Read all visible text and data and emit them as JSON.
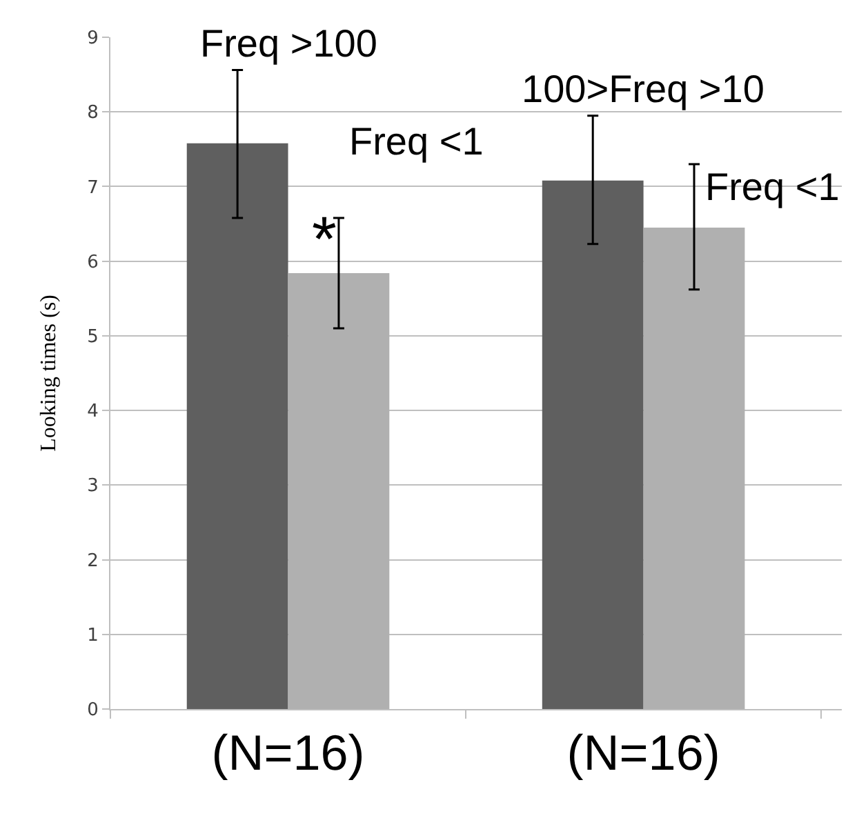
{
  "chart_data": {
    "type": "bar",
    "ylabel": "Looking times (s)",
    "categories": [
      "(N=16)",
      "(N=16)"
    ],
    "series": [
      {
        "color": "#5f5f5f",
        "values": [
          7.58,
          7.08
        ],
        "errors": [
          [
            6.58,
            8.56
          ],
          [
            6.23,
            7.95
          ]
        ]
      },
      {
        "color": "#b0b0b0",
        "values": [
          5.84,
          6.45
        ],
        "errors": [
          [
            5.1,
            6.58
          ],
          [
            5.62,
            7.3
          ]
        ]
      }
    ],
    "ylim": [
      0,
      9
    ],
    "yticks": [
      0,
      1,
      2,
      3,
      4,
      5,
      6,
      7,
      8,
      9
    ],
    "grid": "y",
    "annotations": [
      "Freq >100",
      "Freq <1",
      "100>Freq >10",
      "Freq <1",
      {
        "text": "*",
        "x": "(N=16)",
        "y": 6.3
      }
    ]
  }
}
